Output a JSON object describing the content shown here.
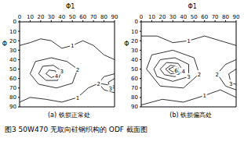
{
  "caption": "图3 50W470 无取向硅钢织构的 ODF 截面图",
  "chart_data": [
    {
      "type": "contour",
      "subtitle": "(a) 铁损正常处",
      "x_label": "Φ1",
      "y_label": "Φ",
      "xlim": [
        0,
        90
      ],
      "ylim": [
        0,
        90
      ],
      "xticks": [
        0,
        10,
        20,
        30,
        40,
        50,
        60,
        70,
        80,
        90
      ],
      "yticks": [
        0,
        10,
        20,
        30,
        40,
        50,
        60,
        70,
        80,
        90
      ],
      "contours": [
        {
          "level": 1,
          "points": [
            [
              0,
              25
            ],
            [
              10,
              22
            ],
            [
              20,
              18
            ],
            [
              30,
              20
            ],
            [
              40,
              28
            ],
            [
              50,
              25
            ],
            [
              60,
              20
            ],
            [
              70,
              25
            ],
            [
              80,
              35
            ],
            [
              90,
              40
            ]
          ]
        },
        {
          "level": 1,
          "points": [
            [
              0,
              85
            ],
            [
              10,
              80
            ],
            [
              25,
              82
            ],
            [
              40,
              85
            ],
            [
              55,
              80
            ],
            [
              65,
              70
            ],
            [
              75,
              65
            ],
            [
              90,
              68
            ]
          ]
        },
        {
          "level": 2,
          "points": [
            [
              10,
              55
            ],
            [
              15,
              42
            ],
            [
              30,
              38
            ],
            [
              45,
              42
            ],
            [
              55,
              50
            ],
            [
              50,
              65
            ],
            [
              35,
              70
            ],
            [
              18,
              66
            ],
            [
              10,
              55
            ]
          ]
        },
        {
          "level": 3,
          "points": [
            [
              18,
              55
            ],
            [
              22,
              47
            ],
            [
              32,
              46
            ],
            [
              40,
              52
            ],
            [
              36,
              62
            ],
            [
              25,
              62
            ],
            [
              18,
              55
            ]
          ]
        },
        {
          "level": 4,
          "points": [
            [
              25,
              55
            ],
            [
              28,
              51
            ],
            [
              34,
              52
            ],
            [
              35,
              57
            ],
            [
              30,
              59
            ],
            [
              25,
              55
            ]
          ]
        },
        {
          "level": 2,
          "points": [
            [
              90,
              55
            ],
            [
              80,
              58
            ],
            [
              75,
              65
            ],
            [
              80,
              72
            ],
            [
              90,
              75
            ]
          ]
        },
        {
          "level": 3,
          "points": [
            [
              90,
              60
            ],
            [
              84,
              64
            ],
            [
              86,
              70
            ],
            [
              90,
              70
            ]
          ]
        }
      ]
    },
    {
      "type": "contour",
      "subtitle": "(b) 铁损偏高处",
      "x_label": "Φ1",
      "y_label": "Φ",
      "xlim": [
        0,
        90
      ],
      "ylim": [
        0,
        90
      ],
      "xticks": [
        0,
        10,
        20,
        30,
        40,
        50,
        60,
        70,
        80,
        90
      ],
      "yticks": [
        0,
        10,
        20,
        30,
        40,
        50,
        60,
        70,
        80,
        90
      ],
      "contours": [
        {
          "level": 1,
          "points": [
            [
              0,
              15
            ],
            [
              15,
              15
            ],
            [
              30,
              22
            ],
            [
              45,
              20
            ],
            [
              60,
              15
            ],
            [
              75,
              20
            ],
            [
              90,
              25
            ]
          ]
        },
        {
          "level": 1,
          "points": [
            [
              0,
              88
            ],
            [
              20,
              82
            ],
            [
              40,
              85
            ],
            [
              60,
              78
            ],
            [
              75,
              72
            ],
            [
              90,
              80
            ]
          ]
        },
        {
          "level": 2,
          "points": [
            [
              5,
              50
            ],
            [
              10,
              35
            ],
            [
              30,
              30
            ],
            [
              50,
              38
            ],
            [
              55,
              55
            ],
            [
              40,
              70
            ],
            [
              18,
              68
            ],
            [
              5,
              50
            ]
          ]
        },
        {
          "level": 3,
          "points": [
            [
              12,
              50
            ],
            [
              18,
              40
            ],
            [
              32,
              38
            ],
            [
              45,
              45
            ],
            [
              45,
              58
            ],
            [
              30,
              63
            ],
            [
              15,
              58
            ],
            [
              12,
              50
            ]
          ]
        },
        {
          "level": 4,
          "points": [
            [
              18,
              50
            ],
            [
              24,
              43
            ],
            [
              35,
              44
            ],
            [
              40,
              52
            ],
            [
              32,
              58
            ],
            [
              22,
              56
            ],
            [
              18,
              50
            ]
          ]
        },
        {
          "level": 5,
          "points": [
            [
              23,
              50
            ],
            [
              28,
              46
            ],
            [
              35,
              48
            ],
            [
              35,
              54
            ],
            [
              28,
              55
            ],
            [
              23,
              50
            ]
          ]
        },
        {
          "level": 6,
          "points": [
            [
              26,
              50
            ],
            [
              30,
              48
            ],
            [
              33,
              51
            ],
            [
              30,
              53
            ],
            [
              26,
              50
            ]
          ]
        },
        {
          "level": 2,
          "points": [
            [
              90,
              40
            ],
            [
              80,
              45
            ],
            [
              72,
              55
            ],
            [
              80,
              68
            ],
            [
              90,
              72
            ]
          ]
        },
        {
          "level": 3,
          "points": [
            [
              90,
              50
            ],
            [
              83,
              55
            ],
            [
              85,
              65
            ],
            [
              90,
              66
            ]
          ]
        }
      ]
    }
  ]
}
